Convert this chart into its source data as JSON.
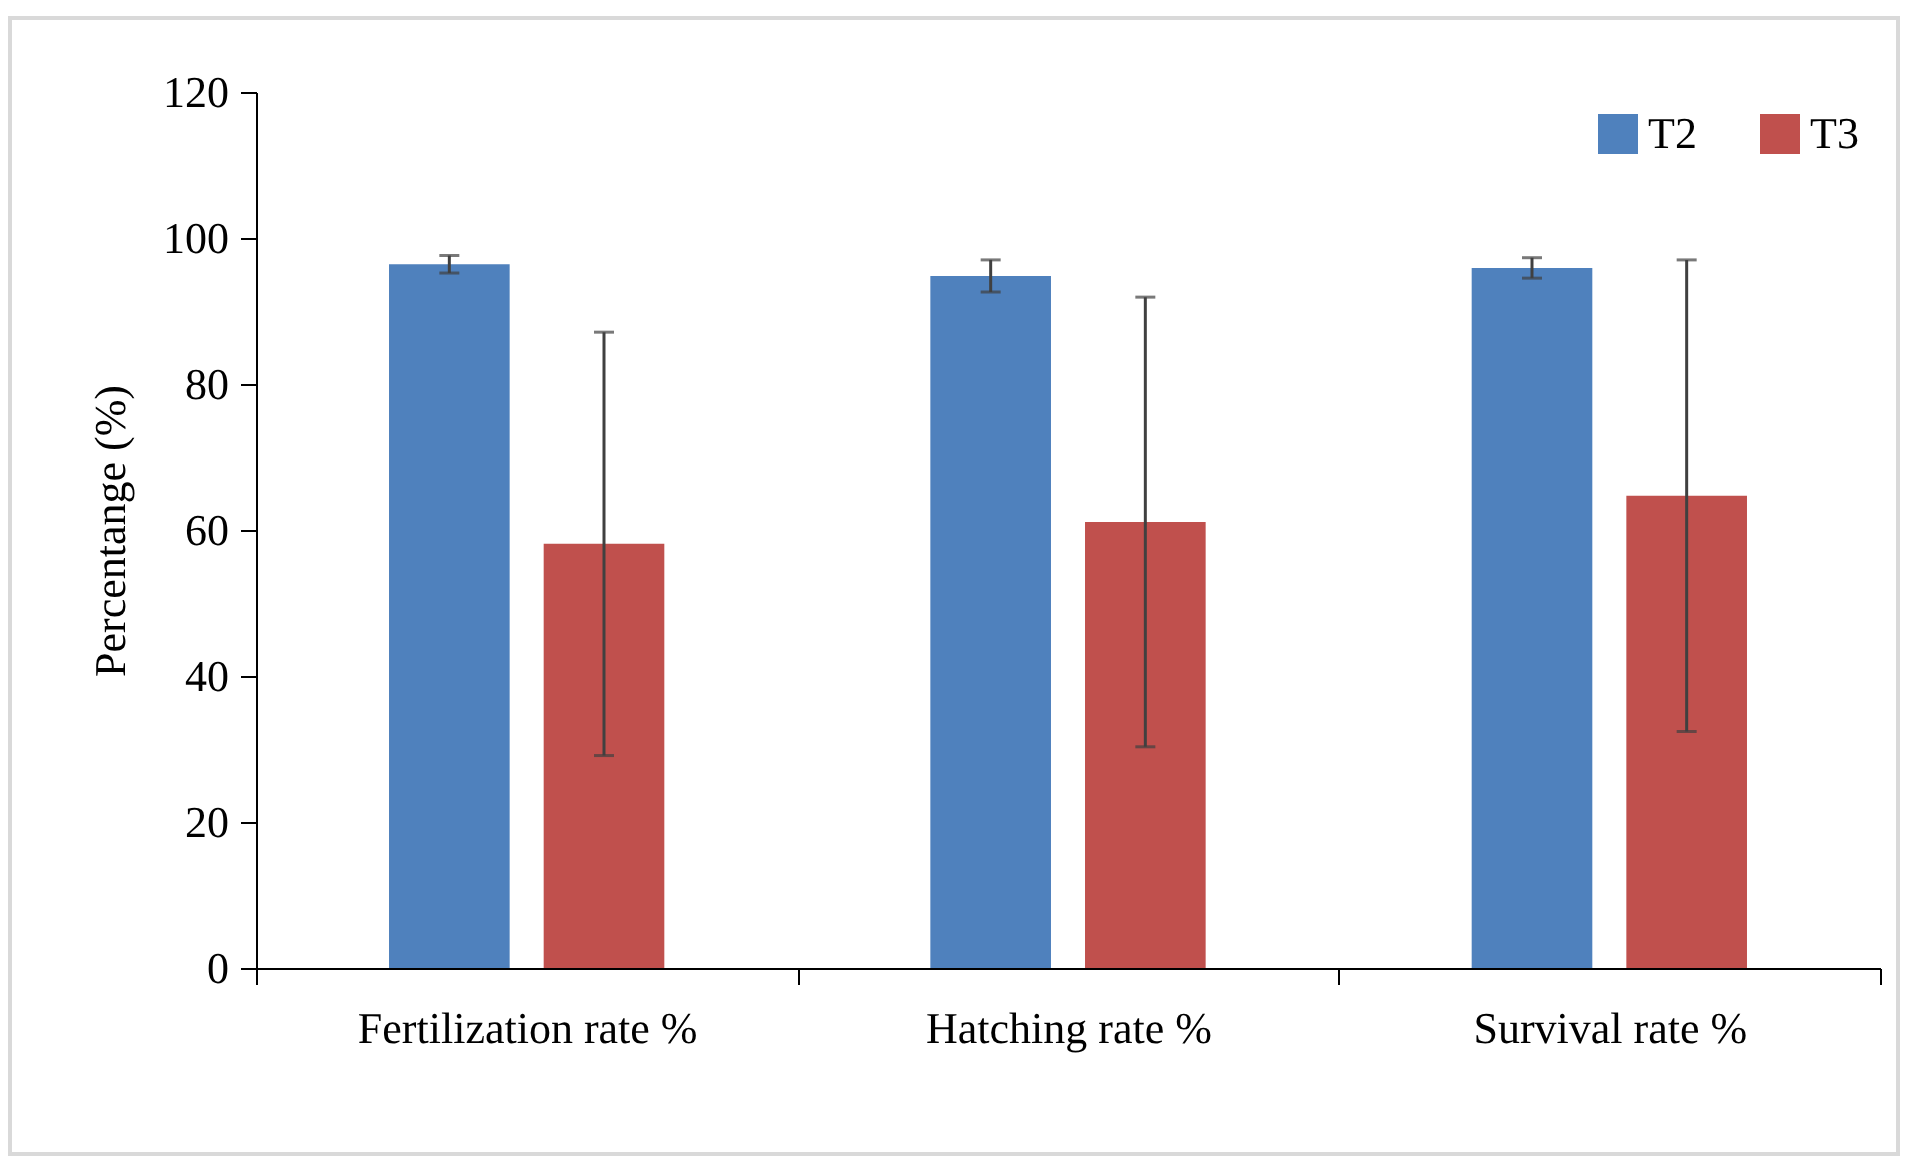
{
  "chart_data": {
    "type": "bar",
    "ylabel": "Percentange (%)",
    "categories": [
      "Fertilization rate %",
      "Hatching rate %",
      "Survival rate %"
    ],
    "series": [
      {
        "name": "T2",
        "color": "#4f81bd",
        "values": [
          96.4,
          94.8,
          95.9
        ],
        "errors": [
          1.2,
          2.2,
          1.4
        ]
      },
      {
        "name": "T3",
        "color": "#c0504d",
        "values": [
          58.1,
          61.1,
          64.7
        ],
        "errors": [
          29,
          30.8,
          32.3
        ]
      }
    ],
    "ylim": [
      0,
      120
    ],
    "yticks": [
      0,
      20,
      40,
      60,
      80,
      100,
      120
    ],
    "grid": false,
    "legend": "top right"
  }
}
